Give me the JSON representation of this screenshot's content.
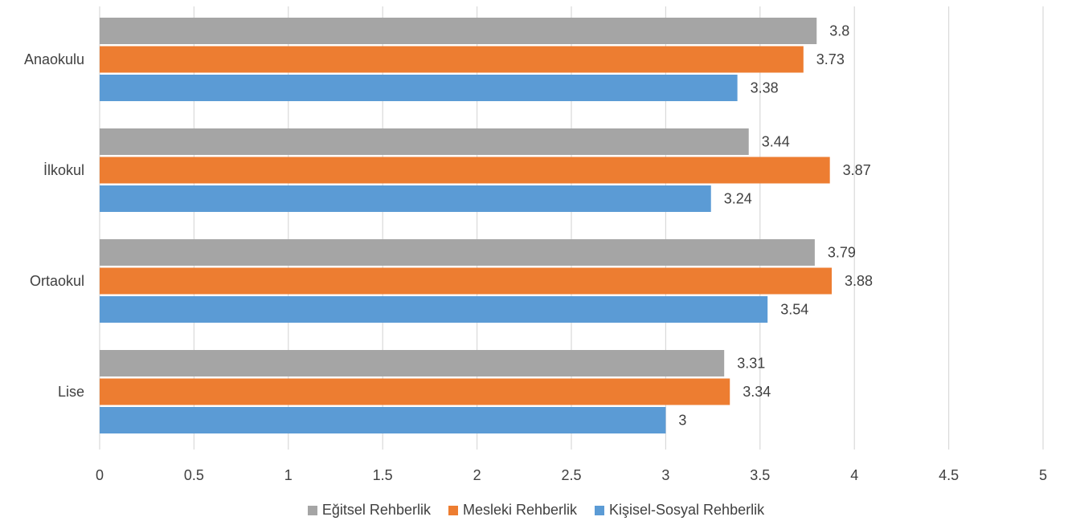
{
  "chart_data": {
    "type": "bar",
    "orientation": "horizontal",
    "categories": [
      "Anaokulu",
      "İlkokul",
      "Ortaokul",
      "Lise"
    ],
    "series": [
      {
        "name": "Eğitsel Rehberlik",
        "color": "#a5a5a5",
        "values": [
          3.8,
          3.44,
          3.79,
          3.31
        ],
        "labels": [
          "3.8",
          "3.44",
          "3.79",
          "3.31"
        ]
      },
      {
        "name": "Mesleki Rehberlik",
        "color": "#ed7d31",
        "values": [
          3.73,
          3.87,
          3.88,
          3.34
        ],
        "labels": [
          "3.73",
          "3.87",
          "3.88",
          "3.34"
        ]
      },
      {
        "name": "Kişisel-Sosyal Rehberlik",
        "color": "#5b9bd5",
        "values": [
          3.38,
          3.24,
          3.54,
          3
        ],
        "labels": [
          "3.38",
          "3.24",
          "3.54",
          "3"
        ]
      }
    ],
    "xlim": [
      0,
      5
    ],
    "xticks": [
      "0",
      "0.5",
      "1",
      "1.5",
      "2",
      "2.5",
      "3",
      "3.5",
      "4",
      "4.5",
      "5"
    ],
    "grid": "vertical",
    "legend_position": "bottom",
    "title": "",
    "xlabel": "",
    "ylabel": ""
  }
}
